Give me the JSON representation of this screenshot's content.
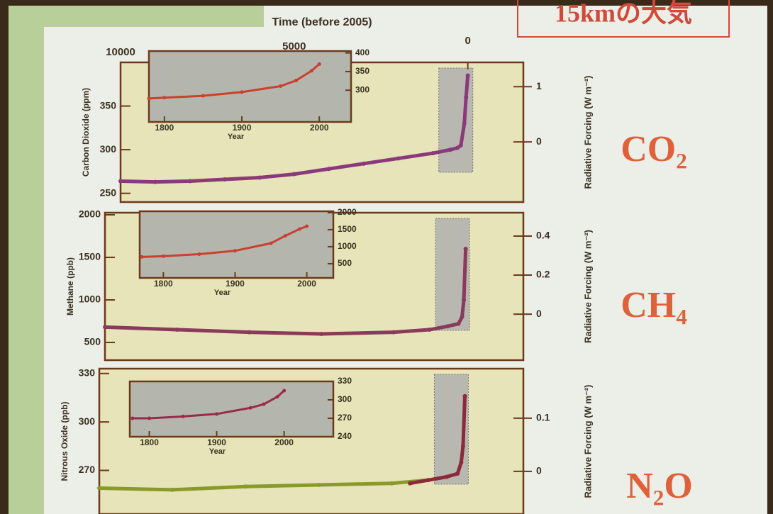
{
  "header": {
    "title": "15kmの大気"
  },
  "gas_labels": [
    "CO₂",
    "CH₄",
    "N₂O"
  ],
  "chart_data": [
    {
      "type": "line",
      "x_label": "Time (before 2005)",
      "y_label": "Carbon Dioxide (ppm)",
      "y2_label": "Radiative Forcing (W m⁻²)",
      "xlim": [
        10000,
        -1600
      ],
      "xticks": [
        10000,
        5000,
        0
      ],
      "ylim": [
        240,
        400
      ],
      "yticks": [
        250,
        300,
        350
      ],
      "y2lim": [
        -1.09,
        1.44
      ],
      "y2ticks": [
        0,
        1
      ],
      "series": [
        {
          "color": "#8a3a7a",
          "x": [
            10000,
            9000,
            8000,
            7000,
            6000,
            5000,
            4000,
            3000,
            2000,
            1000,
            500,
            300,
            200,
            100,
            50,
            0
          ],
          "values": [
            264,
            263,
            264,
            266,
            268,
            272,
            278,
            284,
            290,
            296,
            300,
            302,
            305,
            330,
            360,
            385
          ]
        }
      ]
    },
    {
      "type": "line",
      "x_label": "Year",
      "xlim": [
        1780,
        2041
      ],
      "xticks": [
        1800,
        1900,
        2000
      ],
      "ylim": [
        215,
        405
      ],
      "yticks": [
        300,
        350,
        400
      ],
      "series": [
        {
          "color": "#c8402e",
          "x": [
            1780,
            1800,
            1850,
            1900,
            1950,
            1970,
            1990,
            2000
          ],
          "values": [
            278,
            280,
            285,
            295,
            311,
            326,
            352,
            370
          ]
        }
      ]
    },
    {
      "type": "line",
      "y_label": "Methane (ppb)",
      "y2_label": "Radiative Forcing (W m⁻²)",
      "xlim": [
        10000,
        -1600
      ],
      "ylim": [
        292,
        2025
      ],
      "yticks": [
        500,
        1000,
        1500,
        2000
      ],
      "y2lim": [
        -0.236,
        0.52
      ],
      "y2ticks": [
        0,
        0.2,
        0.4
      ],
      "series": [
        {
          "color": "#8a3a5a",
          "x": [
            10000,
            8000,
            6000,
            4000,
            2000,
            1000,
            500,
            200,
            100,
            50,
            0
          ],
          "values": [
            680,
            650,
            620,
            600,
            620,
            650,
            690,
            720,
            800,
            1000,
            1600
          ]
        }
      ]
    },
    {
      "type": "line",
      "x_label": "Year",
      "xlim": [
        1767,
        2037
      ],
      "xticks": [
        1800,
        1900,
        2000
      ],
      "ylim": [
        83,
        2040
      ],
      "yticks": [
        500,
        1000,
        1500,
        2000
      ],
      "series": [
        {
          "color": "#c8402e",
          "x": [
            1770,
            1800,
            1850,
            1900,
            1950,
            1970,
            1990,
            2000
          ],
          "values": [
            700,
            720,
            780,
            880,
            1100,
            1320,
            1520,
            1600
          ]
        }
      ]
    },
    {
      "type": "line",
      "y_label": "Nitrous Oxide (ppb)",
      "y2_label": "Radiative Forcing (W m⁻²)",
      "xlim": [
        10000,
        -1600
      ],
      "ylim": [
        243,
        333
      ],
      "yticks": [
        270,
        300,
        330
      ],
      "y2lim": [
        -0.08,
        0.193
      ],
      "y2ticks": [
        0,
        0.1
      ],
      "series": [
        {
          "color": "#8a9a2a",
          "x": [
            10000,
            8000,
            6000,
            4000,
            2000,
            1000
          ],
          "values": [
            259,
            258,
            260,
            261,
            262,
            264
          ]
        },
        {
          "color": "#8a2a3a",
          "x": [
            1500,
            1000,
            500,
            200,
            100,
            50,
            0
          ],
          "values": [
            262,
            264,
            266,
            268,
            275,
            285,
            316
          ]
        }
      ]
    },
    {
      "type": "line",
      "x_label": "Year",
      "xlim": [
        1771,
        2073
      ],
      "xticks": [
        1800,
        1900,
        2000
      ],
      "ylim": [
        240,
        330
      ],
      "yticks": [
        240,
        270,
        300,
        330
      ],
      "series": [
        {
          "color": "#9a2a4a",
          "x": [
            1775,
            1800,
            1850,
            1900,
            1950,
            1970,
            1990,
            2000
          ],
          "values": [
            270,
            270,
            273,
            277,
            287,
            293,
            305,
            315
          ]
        }
      ]
    }
  ]
}
